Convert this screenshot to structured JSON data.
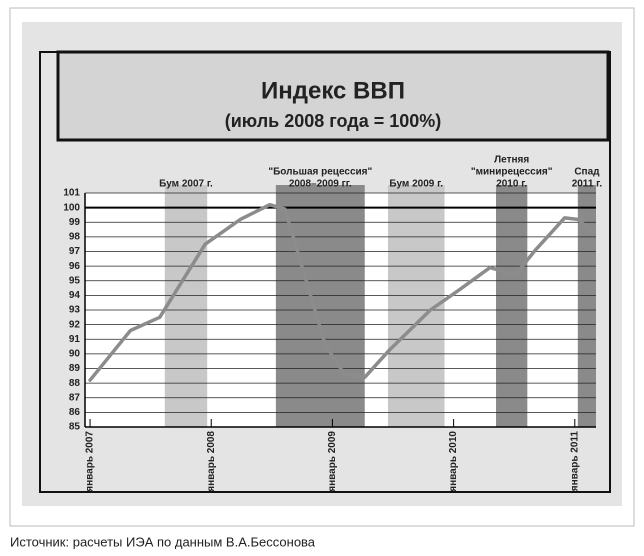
{
  "chart_data": {
    "type": "line",
    "title": "Индекс ВВП",
    "subtitle": "(июль 2008 года = 100%)",
    "x": [
      0,
      4,
      6.9,
      11.4,
      14.9,
      17.8,
      19.3,
      20.8,
      23.3,
      25.2,
      27.2,
      29.7,
      33.7,
      36.6,
      39.6,
      42.1,
      44.1,
      47,
      48.3,
      49.7
    ],
    "series": [
      {
        "name": "Индекс ВВП",
        "color": "#8c8c8c",
        "values": [
          88.2,
          91.6,
          92.5,
          97.5,
          99.2,
          100.2,
          99.9,
          96.4,
          90.6,
          88.6,
          88.4,
          90.3,
          93.0,
          94.4,
          95.9,
          95.4,
          97.1,
          99.3,
          99.2,
          98.4
        ]
      }
    ],
    "xlim": [
      -0.5,
      50.1
    ],
    "xticks": [
      {
        "value": 0,
        "label": "январь 2007"
      },
      {
        "value": 12,
        "label": "январь 2008"
      },
      {
        "value": 24,
        "label": "январь 2009"
      },
      {
        "value": 36,
        "label": "январь 2010"
      },
      {
        "value": 48,
        "label": "январь 2011"
      }
    ],
    "ylim": [
      85,
      101
    ],
    "yticks": [
      85,
      86,
      87,
      88,
      89,
      90,
      91,
      92,
      93,
      94,
      95,
      96,
      97,
      98,
      99,
      100,
      101
    ],
    "reference_line": 100,
    "grid": true,
    "bands": [
      {
        "from": 7.4,
        "to": 11.6,
        "color": "#c8c8c8",
        "label": [
          "Бум 2007 г."
        ]
      },
      {
        "from": 18.4,
        "to": 27.2,
        "color": "#8a8a8a",
        "label": [
          "\"Большая рецессия\"",
          "2008–2009 гг."
        ]
      },
      {
        "from": 29.5,
        "to": 35.1,
        "color": "#c8c8c8",
        "label": [
          "Бум 2009 г."
        ]
      },
      {
        "from": 40.2,
        "to": 43.3,
        "color": "#8a8a8a",
        "label": [
          "Летняя",
          "\"минирецессия\"",
          "2010 г."
        ]
      },
      {
        "from": 48.3,
        "to": 50.1,
        "color": "#8a8a8a",
        "label": [
          "Спад",
          "2011 г."
        ]
      }
    ]
  },
  "source": "Источник: расчеты ИЭА по данным В.А.Бессонова"
}
